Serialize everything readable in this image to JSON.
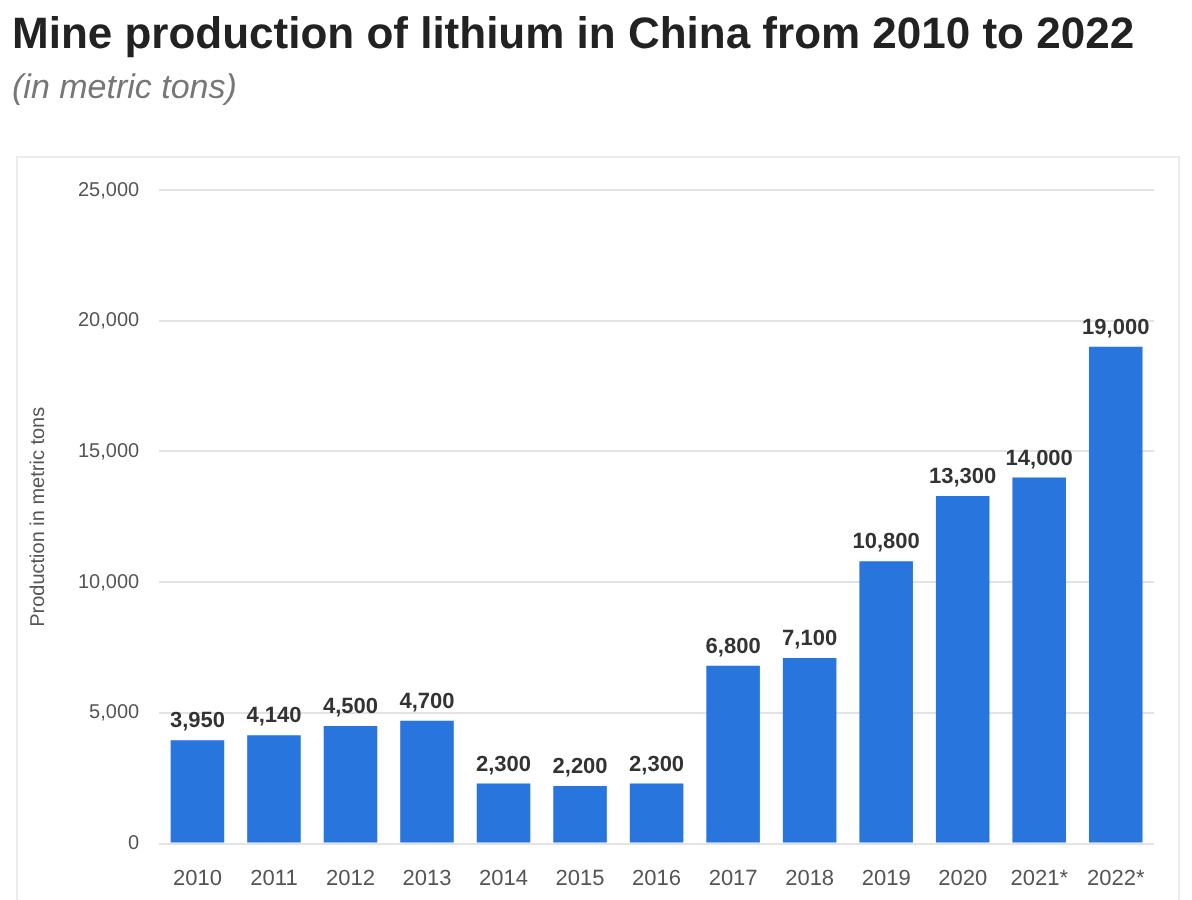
{
  "chart_data": {
    "type": "bar",
    "title": "Mine production of lithium in China from 2010 to 2022",
    "subtitle": "(in metric tons)",
    "ylabel": "Production in metric tons",
    "categories": [
      "2010",
      "2011",
      "2012",
      "2013",
      "2014",
      "2015",
      "2016",
      "2017",
      "2018",
      "2019",
      "2020",
      "2021*",
      "2022*"
    ],
    "values": [
      3950,
      4140,
      4500,
      4700,
      2300,
      2200,
      2300,
      6800,
      7100,
      10800,
      13300,
      14000,
      19000
    ],
    "value_labels": [
      "3,950",
      "4,140",
      "4,500",
      "4,700",
      "2,300",
      "2,200",
      "2,300",
      "6,800",
      "7,100",
      "10,800",
      "13,300",
      "14,000",
      "19,000"
    ],
    "color": "#2876dd",
    "ylim": [
      0,
      25000
    ],
    "yticks": [
      {
        "value": 0,
        "label": "0"
      },
      {
        "value": 5000,
        "label": "5,000"
      },
      {
        "value": 10000,
        "label": "10,000"
      },
      {
        "value": 15000,
        "label": "15,000"
      },
      {
        "value": 20000,
        "label": "20,000"
      },
      {
        "value": 25000,
        "label": "25,000"
      }
    ],
    "grid": "y",
    "legend": false
  }
}
